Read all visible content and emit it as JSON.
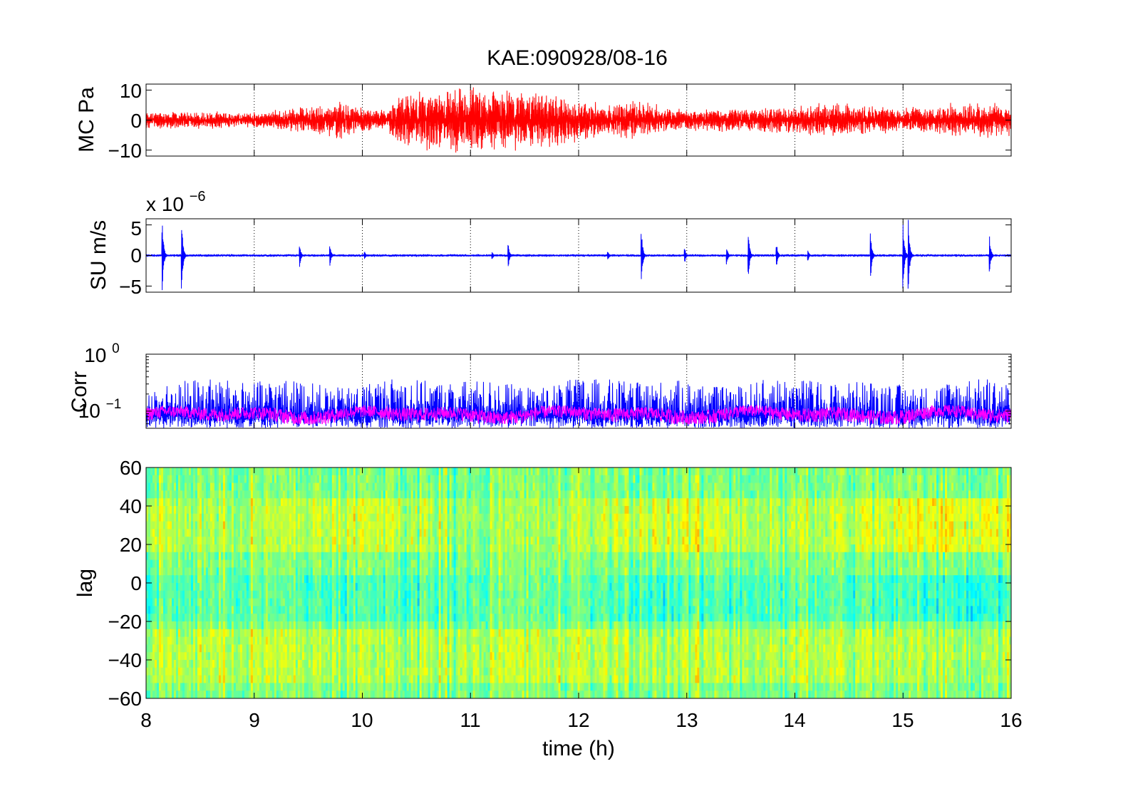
{
  "figure_title": "KAE:090928/08-16",
  "xlabel": "time (h)",
  "xticks": [
    "8",
    "9",
    "10",
    "11",
    "12",
    "13",
    "14",
    "15",
    "16"
  ],
  "chart_data": [
    {
      "type": "line",
      "ylabel": "MC Pa",
      "xlim": [
        8,
        16
      ],
      "ylim": [
        -12,
        12
      ],
      "yticks": [
        "10",
        "0",
        "−10"
      ],
      "grid": "vertical dotted",
      "color": "#ff0000",
      "envelope": {
        "x": [
          8.0,
          8.5,
          9.0,
          9.5,
          9.8,
          10.0,
          10.2,
          10.35,
          10.5,
          10.8,
          11.0,
          11.3,
          11.5,
          11.8,
          12.0,
          12.3,
          12.5,
          12.7,
          13.0,
          13.5,
          14.0,
          14.2,
          14.5,
          15.0,
          15.5,
          16.0
        ],
        "amp": [
          2.5,
          2.5,
          2.2,
          4.0,
          5.5,
          3.5,
          3.0,
          7.0,
          8.0,
          9.0,
          9.5,
          9.0,
          8.5,
          7.5,
          6.0,
          4.5,
          6.0,
          4.5,
          3.0,
          3.5,
          4.0,
          5.0,
          4.5,
          3.5,
          5.0,
          5.0
        ]
      }
    },
    {
      "type": "line",
      "ylabel": "SU m/s",
      "multiplier": "x 10",
      "exponent": "−6",
      "xlim": [
        8,
        16
      ],
      "ylim": [
        -6,
        6
      ],
      "yticks": [
        "5",
        "0",
        "−5"
      ],
      "grid": "vertical dotted",
      "color": "#0000ff",
      "noise_amp": 0.15,
      "bursts": [
        {
          "t": 8.15,
          "amp": 6.0
        },
        {
          "t": 8.33,
          "amp": 6.0
        },
        {
          "t": 9.42,
          "amp": 2.0
        },
        {
          "t": 9.7,
          "amp": 1.8
        },
        {
          "t": 10.02,
          "amp": 0.8
        },
        {
          "t": 11.2,
          "amp": 0.8
        },
        {
          "t": 11.35,
          "amp": 2.0
        },
        {
          "t": 12.27,
          "amp": 0.9
        },
        {
          "t": 12.58,
          "amp": 5.0
        },
        {
          "t": 12.98,
          "amp": 1.5
        },
        {
          "t": 13.37,
          "amp": 1.5
        },
        {
          "t": 13.57,
          "amp": 4.0
        },
        {
          "t": 13.83,
          "amp": 2.2
        },
        {
          "t": 14.12,
          "amp": 1.0
        },
        {
          "t": 14.7,
          "amp": 4.5
        },
        {
          "t": 15.0,
          "amp": 6.0
        },
        {
          "t": 15.05,
          "amp": 6.0
        },
        {
          "t": 15.8,
          "amp": 3.5
        }
      ]
    },
    {
      "type": "line",
      "ylabel": "Corr",
      "yscale": "log",
      "xlim": [
        8,
        16
      ],
      "ylim": [
        0.05,
        1
      ],
      "ytick_base": "10",
      "ytick_exponents": [
        "0",
        "−1"
      ],
      "grid": "vertical dotted",
      "series": [
        {
          "color": "#0000ff",
          "range": [
            0.05,
            0.33
          ]
        },
        {
          "color": "#ff00ff",
          "range": [
            0.06,
            0.14
          ]
        }
      ]
    },
    {
      "type": "heatmap",
      "ylabel": "lag",
      "xlim": [
        8,
        16
      ],
      "ylim": [
        -60,
        60
      ],
      "yticks": [
        "60",
        "40",
        "20",
        "0",
        "−20",
        "−40",
        "−60"
      ],
      "colormap": "jet",
      "band_positive_lag": [
        15,
        45
      ],
      "band_negative_lag": [
        -50,
        -25
      ],
      "band_low_lag": [
        -20,
        5
      ]
    }
  ]
}
